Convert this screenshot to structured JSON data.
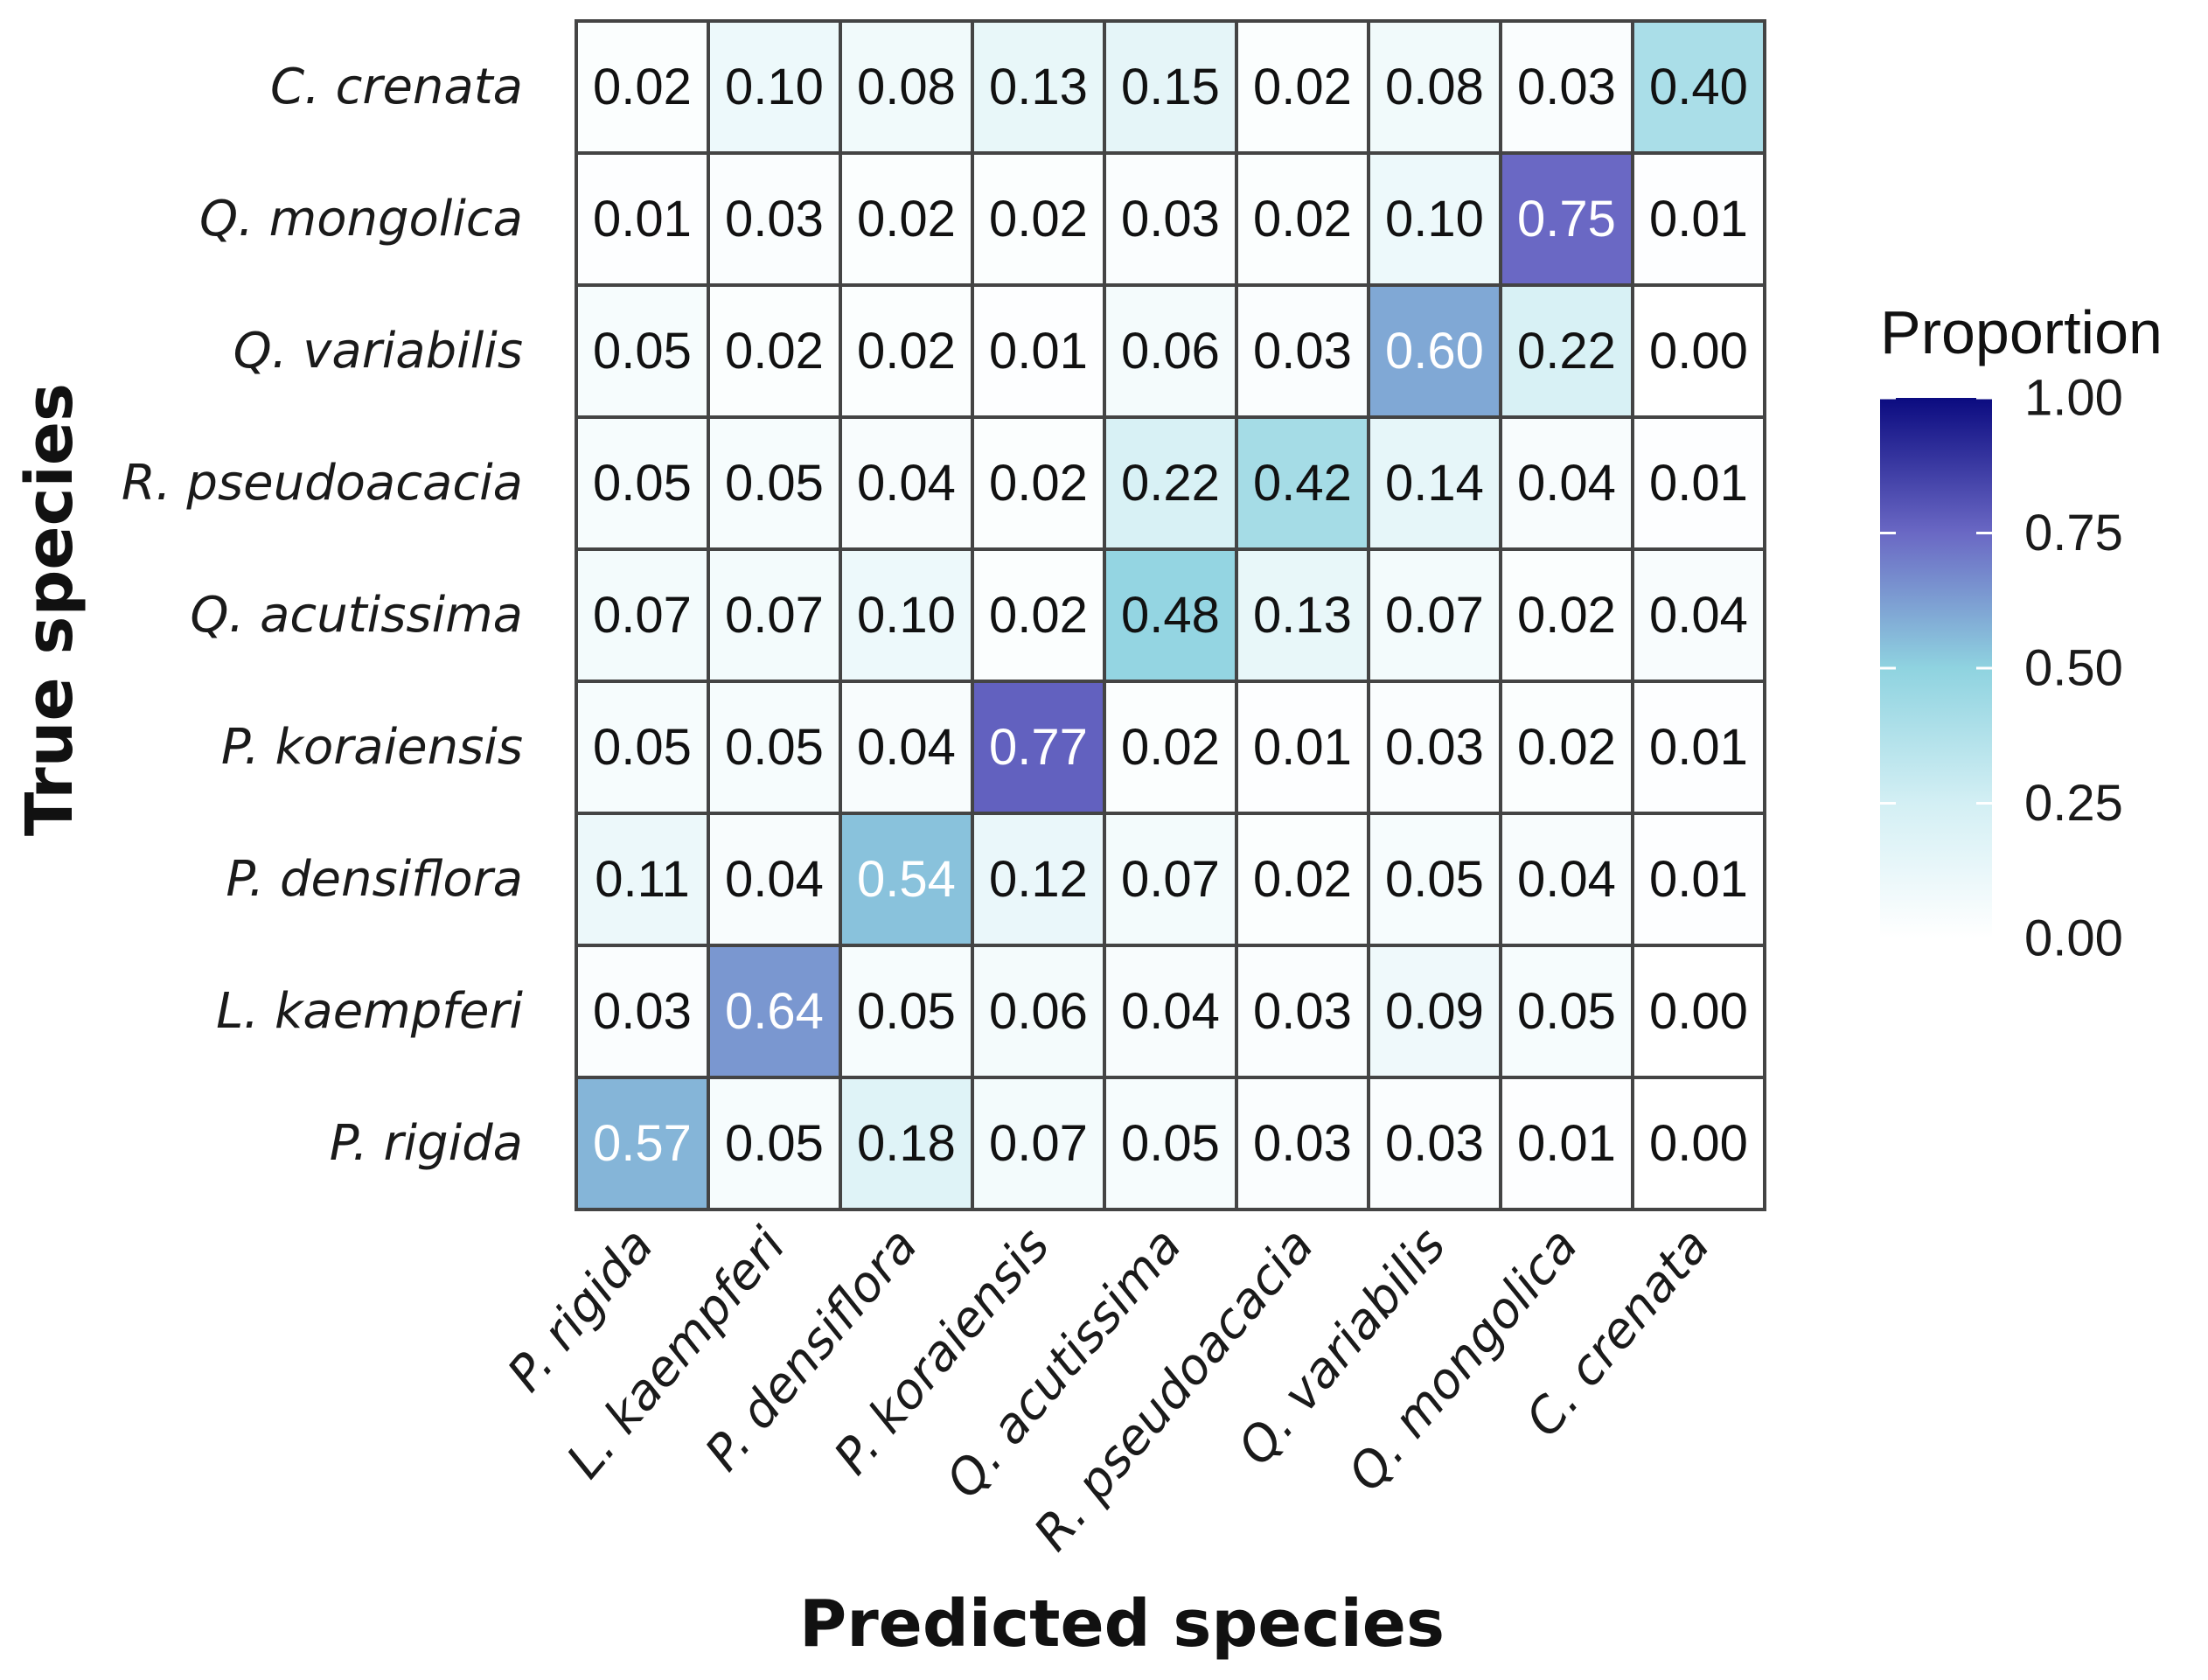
{
  "chart_data": {
    "type": "heatmap",
    "title": "",
    "xlabel": "Predicted species",
    "ylabel": "True species",
    "x_categories": [
      "P. rigida",
      "L. kaempferi",
      "P. densiflora",
      "P. koraiensis",
      "Q. acutissima",
      "R. pseudoacacia",
      "Q. variabilis",
      "Q. mongolica",
      "C. crenata"
    ],
    "y_categories": [
      "C. crenata",
      "Q. mongolica",
      "Q. variabilis",
      "R. pseudoacacia",
      "Q. acutissima",
      "P. koraiensis",
      "P. densiflora",
      "L.  kaempferi",
      "P. rigida"
    ],
    "values": [
      [
        0.02,
        0.1,
        0.08,
        0.13,
        0.15,
        0.02,
        0.08,
        0.03,
        0.4
      ],
      [
        0.01,
        0.03,
        0.02,
        0.02,
        0.03,
        0.02,
        0.1,
        0.75,
        0.01
      ],
      [
        0.05,
        0.02,
        0.02,
        0.01,
        0.06,
        0.03,
        0.6,
        0.22,
        0.0
      ],
      [
        0.05,
        0.05,
        0.04,
        0.02,
        0.22,
        0.42,
        0.14,
        0.04,
        0.01
      ],
      [
        0.07,
        0.07,
        0.1,
        0.02,
        0.48,
        0.13,
        0.07,
        0.02,
        0.04
      ],
      [
        0.05,
        0.05,
        0.04,
        0.77,
        0.02,
        0.01,
        0.03,
        0.02,
        0.01
      ],
      [
        0.11,
        0.04,
        0.54,
        0.12,
        0.07,
        0.02,
        0.05,
        0.04,
        0.01
      ],
      [
        0.03,
        0.64,
        0.05,
        0.06,
        0.04,
        0.03,
        0.09,
        0.05,
        0.0
      ],
      [
        0.57,
        0.05,
        0.18,
        0.07,
        0.05,
        0.03,
        0.03,
        0.01,
        0.0
      ]
    ],
    "value_labels": [
      [
        "0.02",
        "0.10",
        "0.08",
        "0.13",
        "0.15",
        "0.02",
        "0.08",
        "0.03",
        "0.40"
      ],
      [
        "0.01",
        "0.03",
        "0.02",
        "0.02",
        "0.03",
        "0.02",
        "0.10",
        "0.75",
        "0.01"
      ],
      [
        "0.05",
        "0.02",
        "0.02",
        "0.01",
        "0.06",
        "0.03",
        "0.60",
        "0.22",
        "0.00"
      ],
      [
        "0.05",
        "0.05",
        "0.04",
        "0.02",
        "0.22",
        "0.42",
        "0.14",
        "0.04",
        "0.01"
      ],
      [
        "0.07",
        "0.07",
        "0.10",
        "0.02",
        "0.48",
        "0.13",
        "0.07",
        "0.02",
        "0.04"
      ],
      [
        "0.05",
        "0.05",
        "0.04",
        "0.77",
        "0.02",
        "0.01",
        "0.03",
        "0.02",
        "0.01"
      ],
      [
        "0.11",
        "0.04",
        "0.54",
        "0.12",
        "0.07",
        "0.02",
        "0.05",
        "0.04",
        "0.01"
      ],
      [
        "0.03",
        "0.64",
        "0.05",
        "0.06",
        "0.04",
        "0.03",
        "0.09",
        "0.05",
        "0.00"
      ],
      [
        "0.57",
        "0.05",
        "0.18",
        "0.07",
        "0.05",
        "0.03",
        "0.03",
        "0.01",
        "0.00"
      ]
    ],
    "value_range": [
      0,
      1
    ],
    "legend": {
      "title": "Proportion",
      "position": "right",
      "ticks": [
        1.0,
        0.75,
        0.5,
        0.25,
        0.0
      ],
      "tick_labels": [
        "1.00",
        "0.75",
        "0.50",
        "0.25",
        "0.00"
      ]
    },
    "colors": {
      "low": "#ffffff",
      "mid": "#8fd3e0",
      "high": "#0b0b80",
      "light_label_text": "#ffffff",
      "dark_label_text": "#111111",
      "grid_line": "#444444"
    }
  }
}
